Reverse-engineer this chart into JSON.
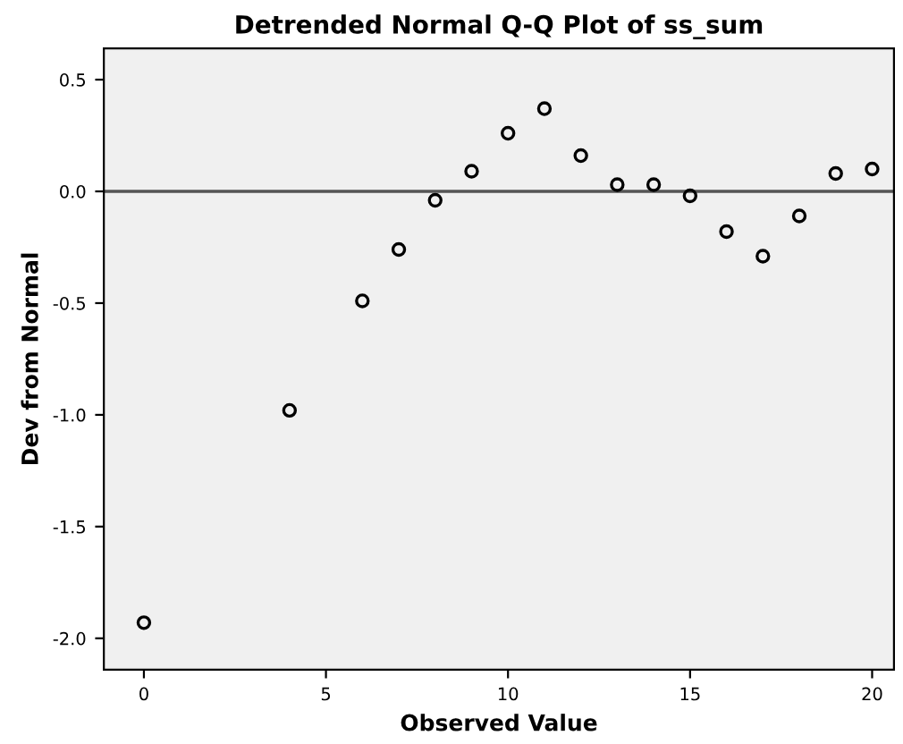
{
  "chart_data": {
    "type": "scatter",
    "title": "Detrended Normal Q-Q Plot of ss_sum",
    "xlabel": "Observed Value",
    "ylabel": "Dev from Normal",
    "x": [
      0,
      4,
      6,
      7,
      8,
      9,
      10,
      11,
      12,
      13,
      14,
      15,
      16,
      17,
      18,
      19,
      20
    ],
    "values": [
      -1.93,
      -0.98,
      -0.49,
      -0.26,
      -0.04,
      0.09,
      0.26,
      0.37,
      0.16,
      0.03,
      0.03,
      -0.02,
      -0.18,
      -0.29,
      -0.11,
      0.08,
      0.1
    ],
    "color": "#000000",
    "marker": "circle",
    "xlim": [
      -1.1,
      20.6
    ],
    "ylim": [
      -2.14,
      0.64
    ],
    "xticks": [
      0,
      5,
      10,
      15,
      20
    ],
    "yticks": [
      {
        "value": -2.0,
        "label": "-2.0"
      },
      {
        "value": -1.5,
        "label": "-1.5"
      },
      {
        "value": -1.0,
        "label": "-1.0"
      },
      {
        "value": -0.5,
        "label": "-0.5"
      },
      {
        "value": 0.0,
        "label": "0.0"
      },
      {
        "value": 0.5,
        "label": "0.5"
      }
    ],
    "ref_lines": [
      {
        "axis": "y",
        "value": 0,
        "color": "#555555"
      }
    ],
    "grid": false,
    "legend": false
  }
}
